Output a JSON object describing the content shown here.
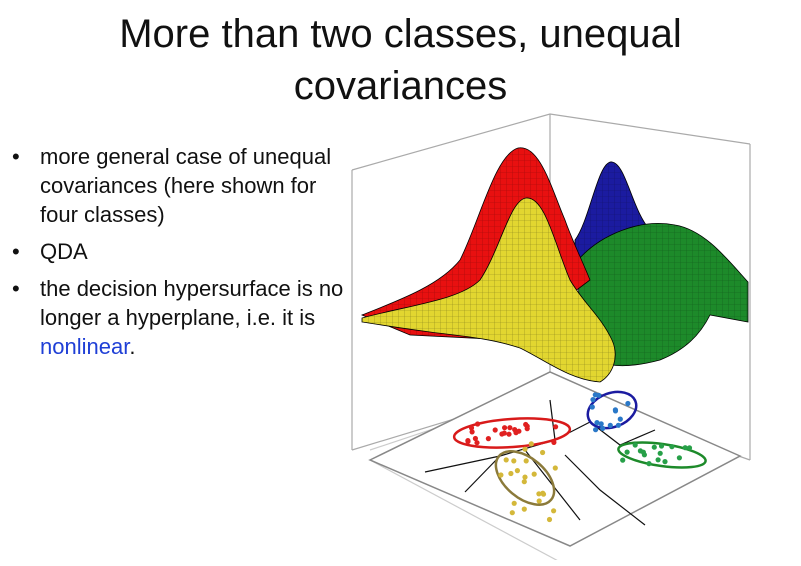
{
  "slide": {
    "title_line1": "More than two classes, unequal",
    "title_line2": "covariances",
    "bullets": [
      {
        "text": "more general case of unequal covariances (here shown for four classes)"
      },
      {
        "text": "QDA"
      },
      {
        "pre": "the decision hypersurface is no longer a hyperplane, i.e. it is ",
        "highlight": "nonlinear",
        "post": "."
      }
    ],
    "bullet_symbol": "•",
    "highlight_color": "#1f3fd6"
  },
  "figure": {
    "classes": [
      {
        "color": "#e81010"
      },
      {
        "color": "#e2d630"
      },
      {
        "color": "#1b1ba0"
      },
      {
        "color": "#1d8a2a"
      }
    ],
    "scatter_colors": [
      "#e02020",
      "#d4b83a",
      "#2a78c8",
      "#27a048"
    ]
  }
}
